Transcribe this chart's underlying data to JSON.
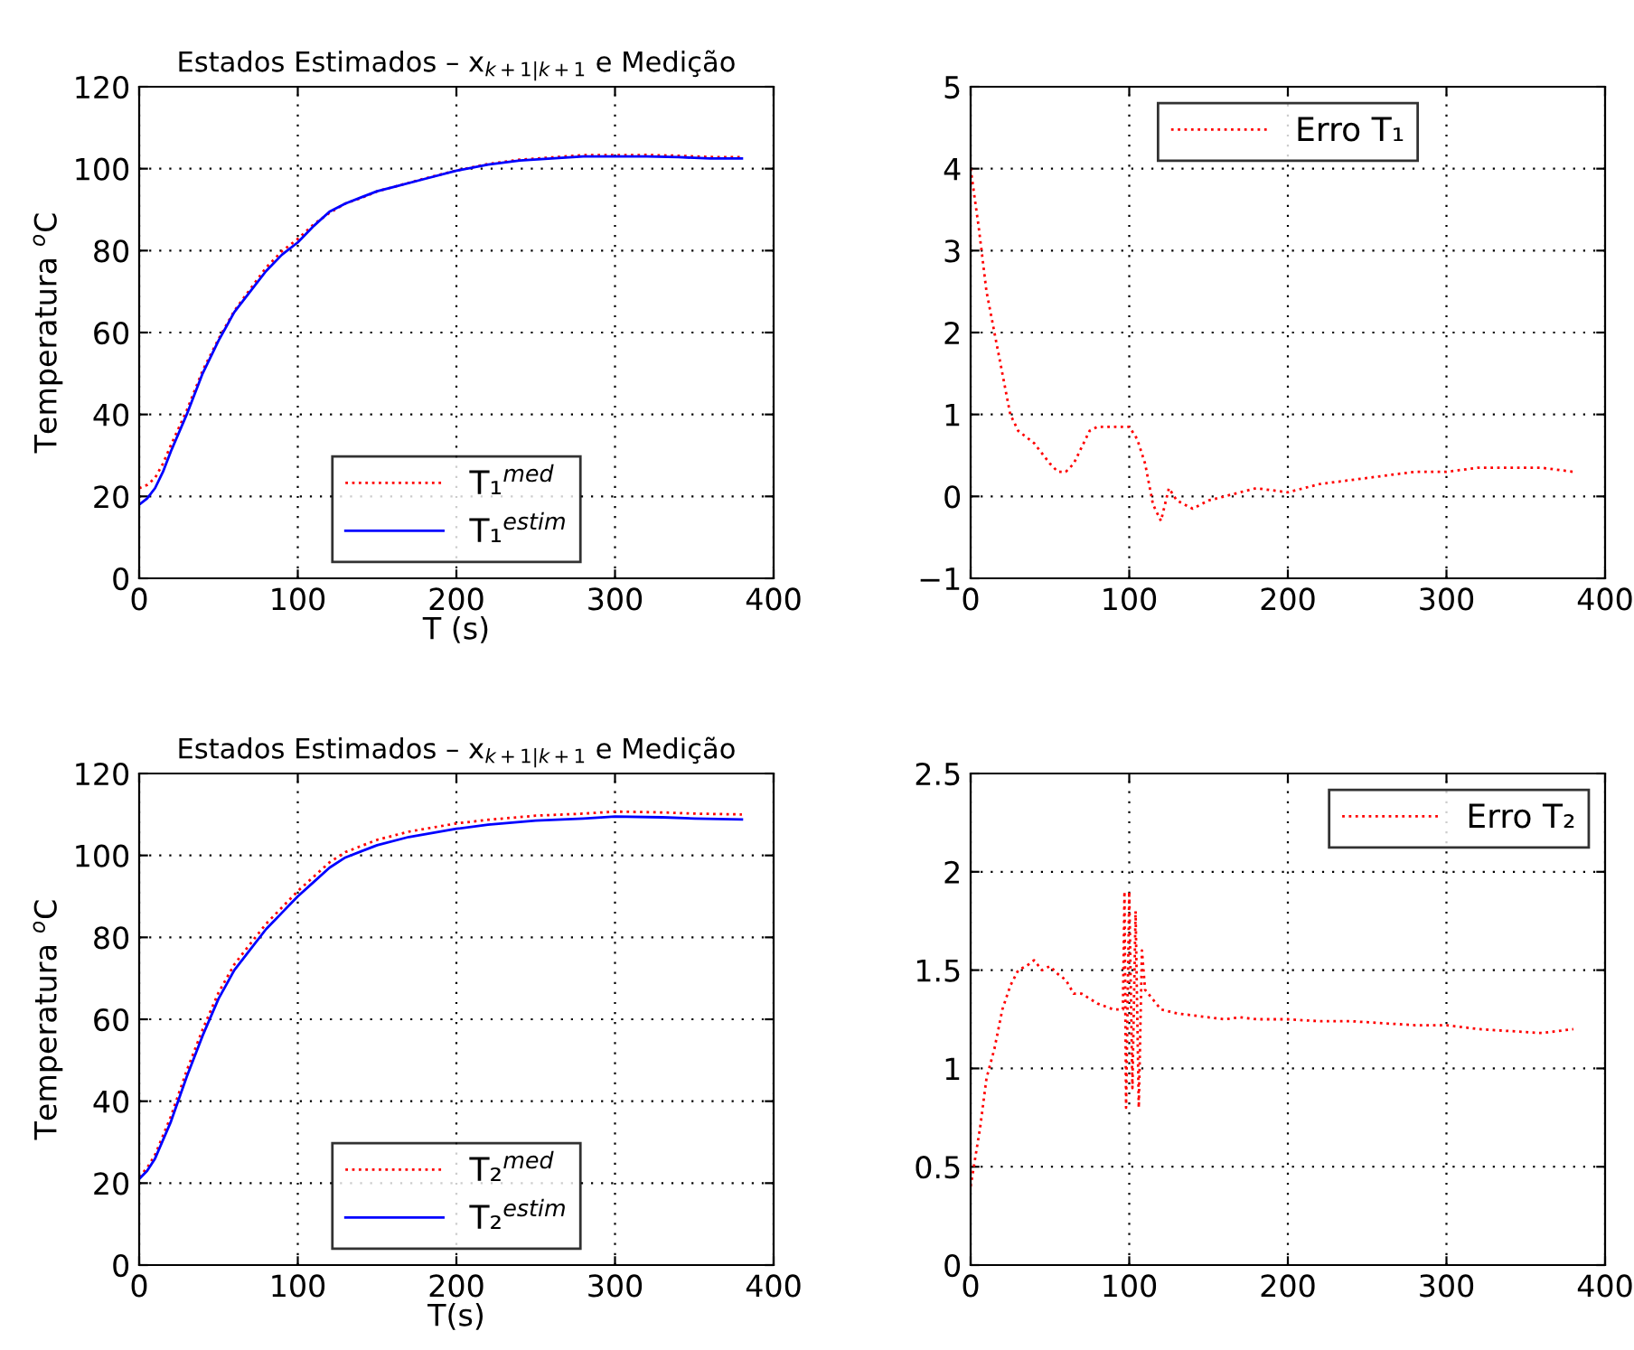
{
  "chart_data": [
    {
      "type": "line",
      "title": "Estados Estimados – x$_{k+1|k+1}$ e Medição",
      "xlabel": "T (s)",
      "ylabel": "Temperatura $^{o}$C",
      "xlim": [
        0,
        400
      ],
      "xticks": [
        0,
        100,
        200,
        300,
        400
      ],
      "ylim": [
        0,
        120
      ],
      "yticks": [
        0,
        20,
        40,
        60,
        80,
        100,
        120
      ],
      "grid": true,
      "legend": "bottom",
      "marker": "none",
      "series": [
        {
          "name": "T₁$^{med}$",
          "color": "#ff0000",
          "line_style": "dotted",
          "x": [
            0,
            5,
            10,
            15,
            20,
            30,
            40,
            50,
            60,
            70,
            80,
            90,
            100,
            110,
            120,
            130,
            140,
            150,
            160,
            180,
            200,
            220,
            240,
            260,
            280,
            300,
            320,
            340,
            360,
            380
          ],
          "values": [
            22,
            22.8,
            24.5,
            28,
            32.5,
            41,
            50.7,
            58.4,
            65.3,
            70.6,
            75.85,
            79.85,
            82.85,
            86.4,
            89.2,
            91.5,
            92.85,
            94.45,
            95.5,
            97.6,
            99.55,
            101.15,
            102.2,
            102.75,
            103.3,
            103.3,
            103.35,
            103.15,
            102.85,
            102.8
          ]
        },
        {
          "name": "T₁$^{estim}$",
          "color": "#0000ff",
          "line_style": "solid",
          "x": [
            0,
            5,
            10,
            15,
            20,
            30,
            40,
            50,
            60,
            70,
            80,
            90,
            100,
            110,
            120,
            130,
            140,
            150,
            160,
            180,
            200,
            220,
            240,
            260,
            280,
            300,
            320,
            340,
            360,
            380
          ],
          "values": [
            18,
            19.5,
            22,
            26,
            31,
            40,
            50,
            58,
            65,
            70,
            75,
            79,
            82,
            86,
            89.5,
            91.5,
            93,
            94.5,
            95.5,
            97.5,
            99.5,
            101,
            102,
            102.5,
            103,
            103,
            103,
            102.8,
            102.5,
            102.5
          ]
        }
      ]
    },
    {
      "type": "line",
      "xlim": [
        0,
        400
      ],
      "xticks": [
        0,
        100,
        200,
        300,
        400
      ],
      "ylim": [
        -1,
        5
      ],
      "yticks": [
        {
          "value": -1,
          "label": "−1"
        },
        0,
        1,
        2,
        3,
        4,
        5
      ],
      "grid": true,
      "legend": "top",
      "marker": "none",
      "series": [
        {
          "name": "Erro T₁",
          "color": "#ff0000",
          "line_style": "dotted",
          "x": [
            0,
            5,
            10,
            15,
            20,
            25,
            30,
            40,
            50,
            55,
            60,
            65,
            70,
            75,
            80,
            90,
            100,
            105,
            110,
            115,
            120,
            125,
            130,
            140,
            150,
            160,
            180,
            200,
            220,
            240,
            260,
            280,
            300,
            320,
            340,
            360,
            380
          ],
          "values": [
            4,
            3.3,
            2.5,
            2,
            1.5,
            1.0,
            0.8,
            0.65,
            0.4,
            0.3,
            0.3,
            0.4,
            0.6,
            0.8,
            0.85,
            0.85,
            0.85,
            0.7,
            0.4,
            -0.1,
            -0.3,
            0.1,
            -0.05,
            -0.15,
            -0.05,
            0.0,
            0.1,
            0.05,
            0.15,
            0.2,
            0.25,
            0.3,
            0.3,
            0.35,
            0.35,
            0.35,
            0.3
          ]
        }
      ]
    },
    {
      "type": "line",
      "title": "Estados Estimados – x$_{k+1|k+1}$ e Medição",
      "xlabel": "T(s)",
      "ylabel": "Temperatura $^{o}$C",
      "xlim": [
        0,
        400
      ],
      "xticks": [
        0,
        100,
        200,
        300,
        400
      ],
      "ylim": [
        0,
        120
      ],
      "yticks": [
        0,
        20,
        40,
        60,
        80,
        100,
        120
      ],
      "grid": true,
      "legend": "bottom",
      "marker": "none",
      "series": [
        {
          "name": "T₂$^{med}$",
          "color": "#ff0000",
          "line_style": "dotted",
          "x": [
            0,
            5,
            10,
            20,
            30,
            40,
            50,
            60,
            70,
            80,
            90,
            95,
            100,
            110,
            120,
            130,
            140,
            150,
            170,
            200,
            220,
            250,
            280,
            300,
            330,
            350,
            380
          ],
          "values": [
            21.5,
            23.7,
            26.9,
            36.3,
            47.5,
            57.5,
            66.5,
            73.4,
            78.4,
            83.3,
            87.3,
            89.3,
            91.3,
            94.8,
            98.3,
            100.8,
            102.3,
            103.8,
            105.8,
            107.8,
            108.7,
            109.7,
            110.2,
            110.7,
            110.5,
            110.2,
            110.0
          ]
        },
        {
          "name": "T₂$^{estim}$",
          "color": "#0000ff",
          "line_style": "solid",
          "x": [
            0,
            5,
            10,
            20,
            30,
            40,
            50,
            60,
            70,
            80,
            90,
            95,
            100,
            110,
            120,
            130,
            140,
            150,
            170,
            200,
            220,
            250,
            280,
            300,
            330,
            350,
            380
          ],
          "values": [
            21,
            23,
            26,
            35,
            46,
            56,
            65,
            72,
            77,
            82,
            86,
            88,
            90,
            93.5,
            97,
            99.5,
            101,
            102.5,
            104.5,
            106.5,
            107.5,
            108.5,
            109,
            109.5,
            109.3,
            109,
            108.8
          ]
        }
      ]
    },
    {
      "type": "line",
      "xlim": [
        0,
        400
      ],
      "xticks": [
        0,
        100,
        200,
        300,
        400
      ],
      "ylim": [
        0,
        2.5
      ],
      "yticks": [
        0,
        0.5,
        1,
        1.5,
        2,
        2.5
      ],
      "grid": true,
      "legend": "top right",
      "marker": "none",
      "series": [
        {
          "name": "Erro T₂",
          "color": "#ff0000",
          "line_style": "dotted",
          "x": [
            0,
            3,
            6,
            10,
            15,
            20,
            25,
            30,
            35,
            40,
            45,
            50,
            55,
            60,
            65,
            70,
            80,
            90,
            96,
            97,
            98,
            100,
            102,
            104,
            106,
            108,
            110,
            115,
            120,
            130,
            140,
            150,
            160,
            170,
            180,
            200,
            220,
            240,
            260,
            280,
            300,
            320,
            340,
            360,
            380
          ],
          "values": [
            0.4,
            0.55,
            0.7,
            0.95,
            1.1,
            1.3,
            1.42,
            1.5,
            1.52,
            1.55,
            1.5,
            1.52,
            1.48,
            1.45,
            1.38,
            1.38,
            1.33,
            1.3,
            1.3,
            1.9,
            0.8,
            1.9,
            0.9,
            1.8,
            0.8,
            1.6,
            1.4,
            1.35,
            1.3,
            1.28,
            1.27,
            1.26,
            1.25,
            1.26,
            1.25,
            1.25,
            1.24,
            1.24,
            1.23,
            1.22,
            1.22,
            1.2,
            1.19,
            1.18,
            1.2
          ]
        }
      ]
    }
  ]
}
